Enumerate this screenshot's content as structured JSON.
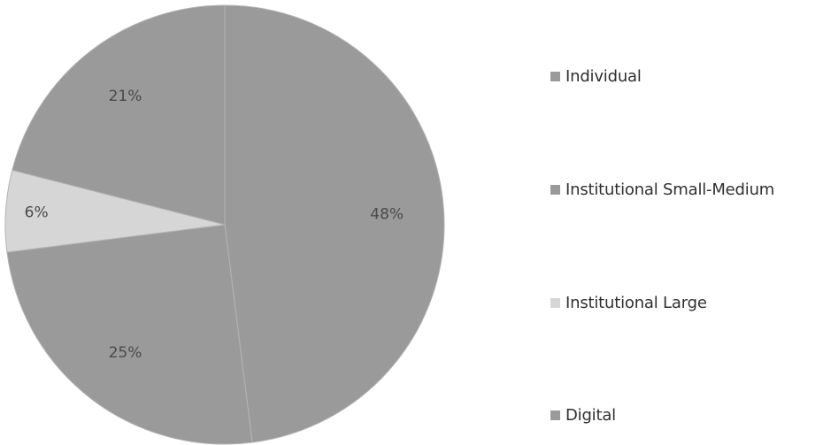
{
  "chart_data": {
    "type": "pie",
    "title": "",
    "categories": [
      "Individual",
      "Institutional Small-Medium",
      "Institutional Large",
      "Digital"
    ],
    "values": [
      21,
      48,
      6,
      25
    ],
    "value_labels": [
      "21%",
      "48%",
      "6%",
      "25%"
    ],
    "start_angle_deg": 0,
    "direction": "clockwise",
    "drawing_order": [
      1,
      3,
      2,
      0
    ],
    "legend_position": "right",
    "colors": {
      "Individual": "#9a9a9a",
      "Institutional Small-Medium": "#9a9a9a",
      "Institutional Large": "#d6d6d6",
      "Digital": "#9a9a9a"
    },
    "slice_border_color": "#b3b3b3",
    "label_color": "#4a4a4a"
  }
}
